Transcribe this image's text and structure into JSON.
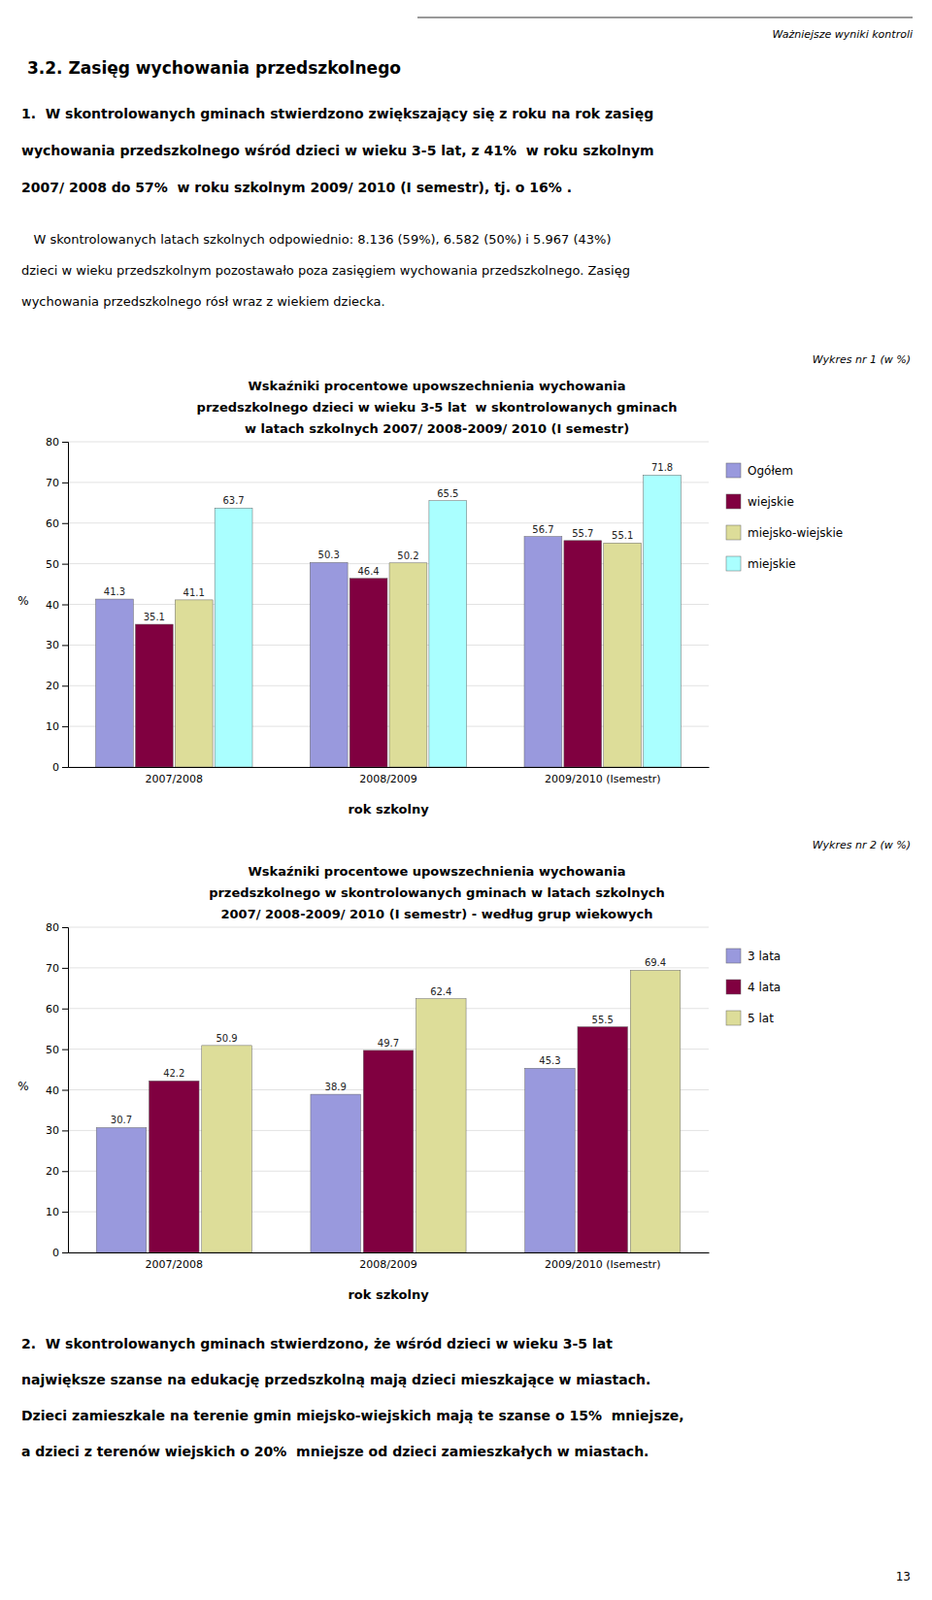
{
  "page": {
    "header": "Ważniejsze wyniki kontroli",
    "section_title": "3.2. Zasięg wychowania przedszkolnego",
    "paragraphs": [
      [
        "1.  W skontrolowanych gminach stwierdzono zwiększający się z roku na rok zasięg",
        "wychowania przedszkolnego wśród dzieci w wieku 3-5 lat, z 41%  w roku szkolnym",
        "2007/ 2008 do 57%  w roku szkolnym 2009/ 2010 (I semestr), tj. o 16% ."
      ],
      [
        "   W skontrolowanych latach szkolnych odpowiednio: 8.136 (59%), 6.582 (50%) i 5.967 (43%)",
        "dzieci w wieku przedszkolnym pozostawało poza zasięgiem wychowania przedszkolnego. Zasięg",
        "wychowania przedszkolnego rósł wraz z wiekiem dziecka."
      ],
      [
        "2.  W skontrolowanych gminach stwierdzono, że wśród dzieci w wieku 3-5 lat",
        "największe szanse na edukację przedszkolną mają dzieci mieszkające w miastach.",
        "Dzieci zamieszkale na terenie gmin miejsko-wiejskich mają te szanse o 15%  mniejsze,",
        "a dzieci z terenów wiejskich o 20%  mniejsze od dzieci zamieszkałych w miastach."
      ]
    ],
    "page_number": "13"
  },
  "chart_data": [
    {
      "type": "bar",
      "subtitle": "Wykres nr 1 (w %)",
      "title": [
        "Wskaźniki procentowe upowszechnienia wychowania",
        "przedszkolnego dzieci w wieku 3-5 lat  w skontrolowanych gminach",
        "w latach szkolnych 2007/ 2008-2009/ 2010 (I semestr)"
      ],
      "xlabel": "rok szkolny",
      "ylabel": "%",
      "categories": [
        "2007/2008",
        "2008/2009",
        "2009/2010 (Isemestr)"
      ],
      "series": [
        {
          "name": "Ogółem",
          "color": "#9999dd",
          "values": [
            41.3,
            50.3,
            56.7
          ]
        },
        {
          "name": "wiejskie",
          "color": "#800040",
          "values": [
            35.1,
            46.4,
            55.7
          ]
        },
        {
          "name": "miejsko-wiejskie",
          "color": "#dddd99",
          "values": [
            41.1,
            50.2,
            55.1
          ]
        },
        {
          "name": "miejskie",
          "color": "#aaffff",
          "values": [
            63.7,
            65.5,
            71.8
          ]
        }
      ],
      "ylim": [
        0,
        80
      ],
      "yticks": [
        0,
        10,
        20,
        30,
        40,
        50,
        60,
        70,
        80
      ],
      "grid": true,
      "data_labels": true,
      "legend": "right"
    },
    {
      "type": "bar",
      "subtitle": "Wykres nr 2 (w %)",
      "title": [
        "Wskaźniki procentowe upowszechnienia wychowania",
        "przedszkolnego w skontrolowanych gminach w latach szkolnych",
        "2007/ 2008-2009/ 2010 (I semestr) - według grup wiekowych"
      ],
      "xlabel": "rok szkolny",
      "ylabel": "%",
      "categories": [
        "2007/2008",
        "2008/2009",
        "2009/2010 (Isemestr)"
      ],
      "series": [
        {
          "name": "3 lata",
          "color": "#9999dd",
          "values": [
            30.7,
            38.9,
            45.3
          ]
        },
        {
          "name": "4 lata",
          "color": "#800040",
          "values": [
            42.2,
            49.7,
            55.5
          ]
        },
        {
          "name": "5 lat",
          "color": "#dddd99",
          "values": [
            50.9,
            62.4,
            69.4
          ]
        }
      ],
      "ylim": [
        0,
        80
      ],
      "yticks": [
        0,
        10,
        20,
        30,
        40,
        50,
        60,
        70,
        80
      ],
      "grid": true,
      "data_labels": true,
      "legend": "right"
    }
  ]
}
